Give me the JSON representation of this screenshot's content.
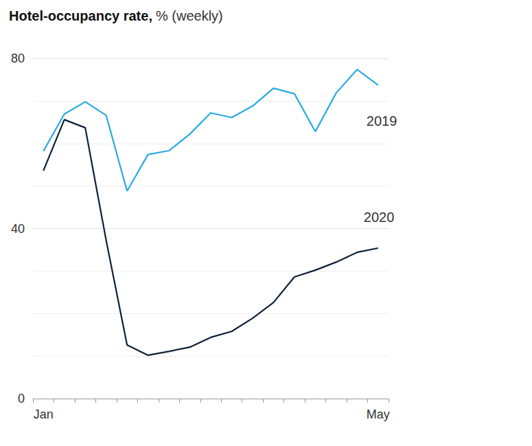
{
  "chart_data": {
    "type": "line",
    "title": "Hotel-occupancy rate,",
    "subtitle": "% (weekly)",
    "categories": [
      "Jan",
      null,
      null,
      null,
      null,
      null,
      null,
      null,
      null,
      null,
      null,
      null,
      null,
      null,
      null,
      null,
      "May"
    ],
    "series": [
      {
        "name": "2019",
        "color": "#29aae1",
        "values": [
          58.2,
          66.9,
          69.8,
          66.6,
          48.8,
          57.4,
          58.3,
          62.2,
          67.2,
          66.1,
          68.8,
          73.0,
          71.7,
          62.8,
          71.9,
          77.4,
          73.7
        ]
      },
      {
        "name": "2020",
        "color": "#0d2137",
        "values": [
          53.6,
          65.6,
          63.7,
          37.2,
          12.6,
          10.2,
          11.1,
          12.1,
          14.4,
          15.8,
          18.9,
          22.6,
          28.6,
          30.2,
          32.1,
          34.4,
          35.4
        ]
      }
    ],
    "ylim": [
      0,
      80
    ],
    "yticks": [
      0,
      40,
      80
    ],
    "grid": true
  }
}
